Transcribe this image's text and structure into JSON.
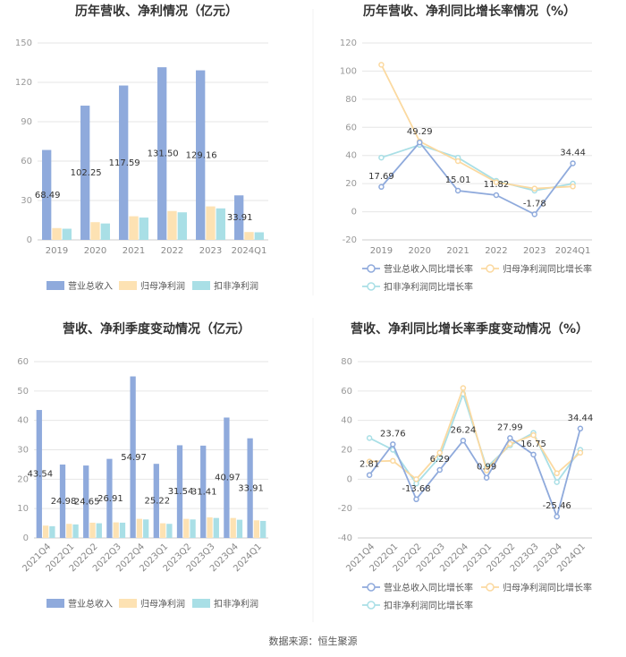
{
  "source": "数据来源：恒生聚源",
  "colors": {
    "revenue": "#8faadc",
    "net": "#fde2b3",
    "deducted": "#a9dfe6",
    "line_revenue": "#8faadc",
    "line_net": "#fbd9a0",
    "line_deducted": "#a9dfe6"
  },
  "chart_data": [
    {
      "id": "annual_bar",
      "type": "bar",
      "title": "历年营收、净利情况（亿元）",
      "categories": [
        "2019",
        "2020",
        "2021",
        "2022",
        "2023",
        "2024Q1"
      ],
      "ylim": [
        0,
        150
      ],
      "yticks": [
        "0",
        "30",
        "60",
        "90",
        "120",
        "150"
      ],
      "series": [
        {
          "name": "营业总收入",
          "values": [
            68.49,
            102.25,
            117.59,
            131.5,
            129.16,
            33.91
          ]
        },
        {
          "name": "归母净利润",
          "values": [
            9.0,
            13.5,
            18.0,
            22.0,
            25.5,
            6.0
          ]
        },
        {
          "name": "扣非净利润",
          "values": [
            8.5,
            12.5,
            17.0,
            21.0,
            24.0,
            5.8
          ]
        }
      ],
      "labels": [
        "68.49",
        "102.25",
        "117.59",
        "131.50",
        "129.16",
        "33.91"
      ]
    },
    {
      "id": "annual_line",
      "type": "line",
      "title": "历年营收、净利同比增长率情况（%）",
      "categories": [
        "2019",
        "2020",
        "2021",
        "2022",
        "2023",
        "2024Q1"
      ],
      "ylim": [
        -20,
        120
      ],
      "yticks": [
        "-20",
        "0",
        "20",
        "40",
        "60",
        "80",
        "100",
        "120"
      ],
      "series": [
        {
          "name": "营业总收入同比增长率",
          "values": [
            17.69,
            49.29,
            15.01,
            11.82,
            -1.78,
            34.44
          ]
        },
        {
          "name": "归母净利润同比增长率",
          "values": [
            104.5,
            50.0,
            36.0,
            21.0,
            16.5,
            18.0
          ]
        },
        {
          "name": "扣非净利润同比增长率",
          "values": [
            38.5,
            47.5,
            38.5,
            22.0,
            15.0,
            20.0
          ]
        }
      ],
      "labels": [
        "17.69",
        "49.29",
        "15.01",
        "11.82",
        "-1.78",
        "34.44"
      ]
    },
    {
      "id": "quarter_bar",
      "type": "bar",
      "title": "营收、净利季度变动情况（亿元）",
      "categories": [
        "2021Q4",
        "2022Q1",
        "2022Q2",
        "2022Q3",
        "2022Q4",
        "2023Q1",
        "2023Q2",
        "2023Q3",
        "2023Q4",
        "2024Q1"
      ],
      "ylim": [
        0,
        60
      ],
      "yticks": [
        "0",
        "10",
        "20",
        "30",
        "40",
        "50",
        "60"
      ],
      "series": [
        {
          "name": "营业总收入",
          "values": [
            43.54,
            24.98,
            24.65,
            26.91,
            54.97,
            25.22,
            31.54,
            31.41,
            40.97,
            33.91
          ]
        },
        {
          "name": "归母净利润",
          "values": [
            4.2,
            4.8,
            5.2,
            5.3,
            6.5,
            5.0,
            6.5,
            7.0,
            6.8,
            6.0
          ]
        },
        {
          "name": "扣非净利润",
          "values": [
            4.0,
            4.6,
            5.0,
            5.2,
            6.3,
            4.8,
            6.3,
            6.8,
            6.2,
            5.8
          ]
        }
      ],
      "labels": [
        "43.54",
        "24.98",
        "24.65",
        "26.91",
        "54.97",
        "25.22",
        "31.54",
        "31.41",
        "40.97",
        "33.91"
      ]
    },
    {
      "id": "quarter_line",
      "type": "line",
      "title": "营收、净利同比增长率季度变动情况（%）",
      "categories": [
        "2021Q4",
        "2022Q1",
        "2022Q2",
        "2022Q3",
        "2022Q4",
        "2023Q1",
        "2023Q2",
        "2023Q3",
        "2023Q4",
        "2024Q1"
      ],
      "ylim": [
        -40,
        80
      ],
      "yticks": [
        "-40",
        "-20",
        "0",
        "20",
        "40",
        "60",
        "80"
      ],
      "series": [
        {
          "name": "营业总收入同比增长率",
          "values": [
            2.81,
            23.76,
            -13.68,
            6.29,
            26.24,
            0.99,
            27.99,
            16.75,
            -25.46,
            34.44
          ]
        },
        {
          "name": "归母净利润同比增长率",
          "values": [
            12.0,
            12.5,
            0.0,
            18.0,
            62.0,
            6.0,
            24.0,
            30.0,
            4.0,
            18.0
          ]
        },
        {
          "name": "扣非净利润同比增长率",
          "values": [
            28.0,
            20.0,
            -3.0,
            15.0,
            58.0,
            8.0,
            23.0,
            31.5,
            -2.0,
            20.0
          ]
        }
      ],
      "labels": [
        "2.81",
        "23.76",
        "-13.68",
        "6.29",
        "26.24",
        "0.99",
        "27.99",
        "16.75",
        "-25.46",
        "34.44"
      ]
    }
  ]
}
